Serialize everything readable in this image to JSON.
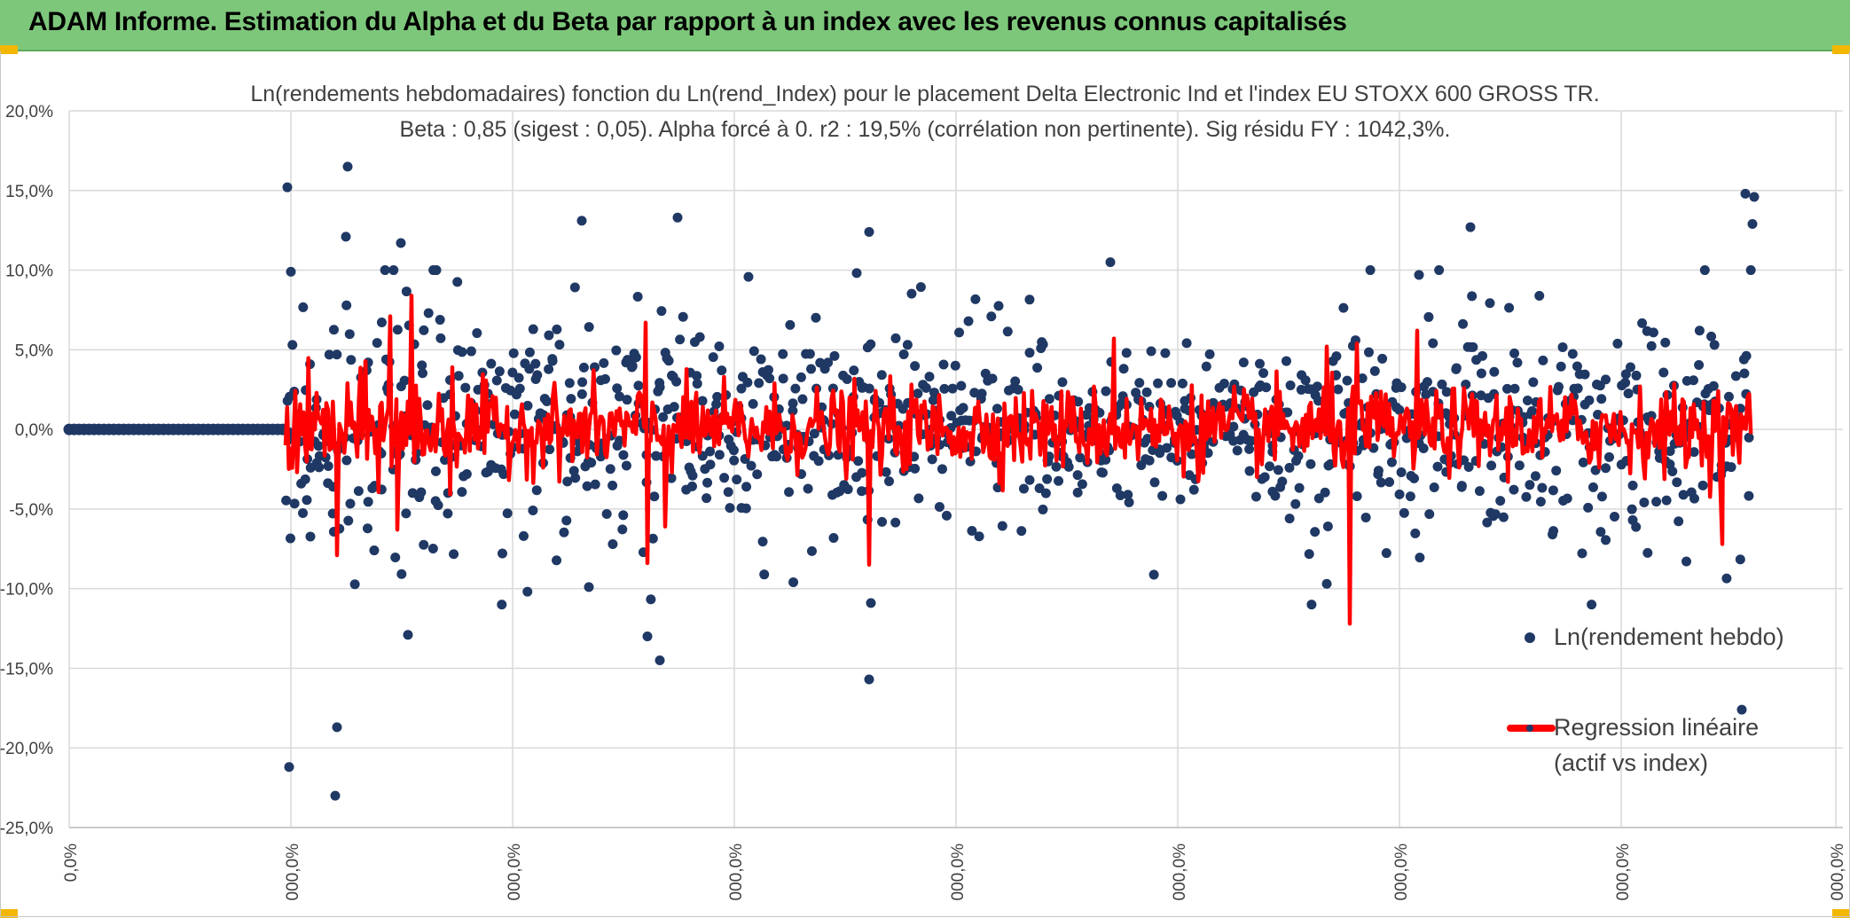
{
  "banner": {
    "title": "ADAM Informe. Estimation du Alpha et du Beta par rapport à un index avec les revenus connus capitalisés"
  },
  "chart_data": {
    "type": "scatter",
    "title": "Ln(rendements hebdomadaires) fonction du Ln(rend_Index) pour le placement Delta Electronic Ind  et l'index EU STOXX 600 GROSS TR.",
    "subtitle": "Beta : 0,85 (sigest : 0,05). Alpha forcé à 0. r2 : 19,5% (corrélation non pertinente). Sig résidu FY : 1042,3%.",
    "y_ticks": [
      "20,0%",
      "15,0%",
      "10,0%",
      "5,0%",
      "0,0%",
      "-5,0%",
      "-10,0%",
      "-15,0%",
      "-20,0%",
      "-25,0%"
    ],
    "x_ticks": [
      "0,0%",
      "000,0%",
      "000,0%",
      "000,0%",
      "000,0%",
      "000,0%",
      "000,0%",
      "000,0%",
      "000,0%"
    ],
    "ylim": [
      -25,
      20
    ],
    "grid": true,
    "legend_placement": "right",
    "colors": {
      "scatter": "#1f3864",
      "regression": "#ff0000",
      "grid": "#d9d9d9",
      "axis_text": "#404040"
    },
    "series": [
      {
        "name": "Ln(rendement hebdo)",
        "kind": "scatter",
        "x_range_pct": [
          0,
          100
        ],
        "flat_prefix": {
          "x_end_pct": 12.2,
          "y": 0
        },
        "highlight_points": [
          {
            "x": 12.3,
            "y": 15.2
          },
          {
            "x": 12.4,
            "y": -21.2
          },
          {
            "x": 12.5,
            "y": 9.9
          },
          {
            "x": 15.1,
            "y": -18.7
          },
          {
            "x": 15.0,
            "y": -23.0
          },
          {
            "x": 15.7,
            "y": 16.5
          },
          {
            "x": 15.6,
            "y": 12.1
          },
          {
            "x": 18.7,
            "y": 11.7
          },
          {
            "x": 19.1,
            "y": -12.9
          },
          {
            "x": 28.9,
            "y": 13.1
          },
          {
            "x": 29.3,
            "y": -9.9
          },
          {
            "x": 32.6,
            "y": -13.0
          },
          {
            "x": 34.3,
            "y": 13.3
          },
          {
            "x": 33.3,
            "y": -14.5
          },
          {
            "x": 45.1,
            "y": 12.4
          },
          {
            "x": 45.1,
            "y": -15.7
          },
          {
            "x": 45.2,
            "y": -10.9
          },
          {
            "x": 58.7,
            "y": 10.5
          },
          {
            "x": 70.9,
            "y": -9.7
          },
          {
            "x": 76.1,
            "y": 9.7
          },
          {
            "x": 79.0,
            "y": 12.7
          },
          {
            "x": 94.5,
            "y": 14.8
          },
          {
            "x": 95.0,
            "y": 14.6
          },
          {
            "x": 94.9,
            "y": 12.9
          },
          {
            "x": 94.3,
            "y": -17.6
          }
        ],
        "spread_sd": 3.2
      },
      {
        "name": "Regression linéaire (actif vs index)",
        "kind": "line",
        "x_range_pct": [
          12.2,
          100
        ],
        "spread_sd": 1.7,
        "spikes": [
          {
            "x": 18.1,
            "y": 7.1
          },
          {
            "x": 19.3,
            "y": 8.4
          },
          {
            "x": 15.1,
            "y": -7.9
          },
          {
            "x": 18.5,
            "y": -6.3
          },
          {
            "x": 32.5,
            "y": 6.7
          },
          {
            "x": 32.6,
            "y": -8.4
          },
          {
            "x": 45.1,
            "y": -8.5
          },
          {
            "x": 70.9,
            "y": 5.2
          },
          {
            "x": 72.6,
            "y": 5.4
          },
          {
            "x": 76.0,
            "y": 6.2
          },
          {
            "x": 72.2,
            "y": -12.2
          },
          {
            "x": 93.2,
            "y": -7.2
          },
          {
            "x": 21.6,
            "y": 3.9
          },
          {
            "x": 33.6,
            "y": -6.1
          },
          {
            "x": 58.9,
            "y": 5.7
          }
        ]
      }
    ],
    "legend": [
      {
        "label_lines": [
          "Ln(rendement hebdo)"
        ]
      },
      {
        "label_lines": [
          "Regression linéaire",
          "(actif vs index)"
        ]
      }
    ]
  }
}
